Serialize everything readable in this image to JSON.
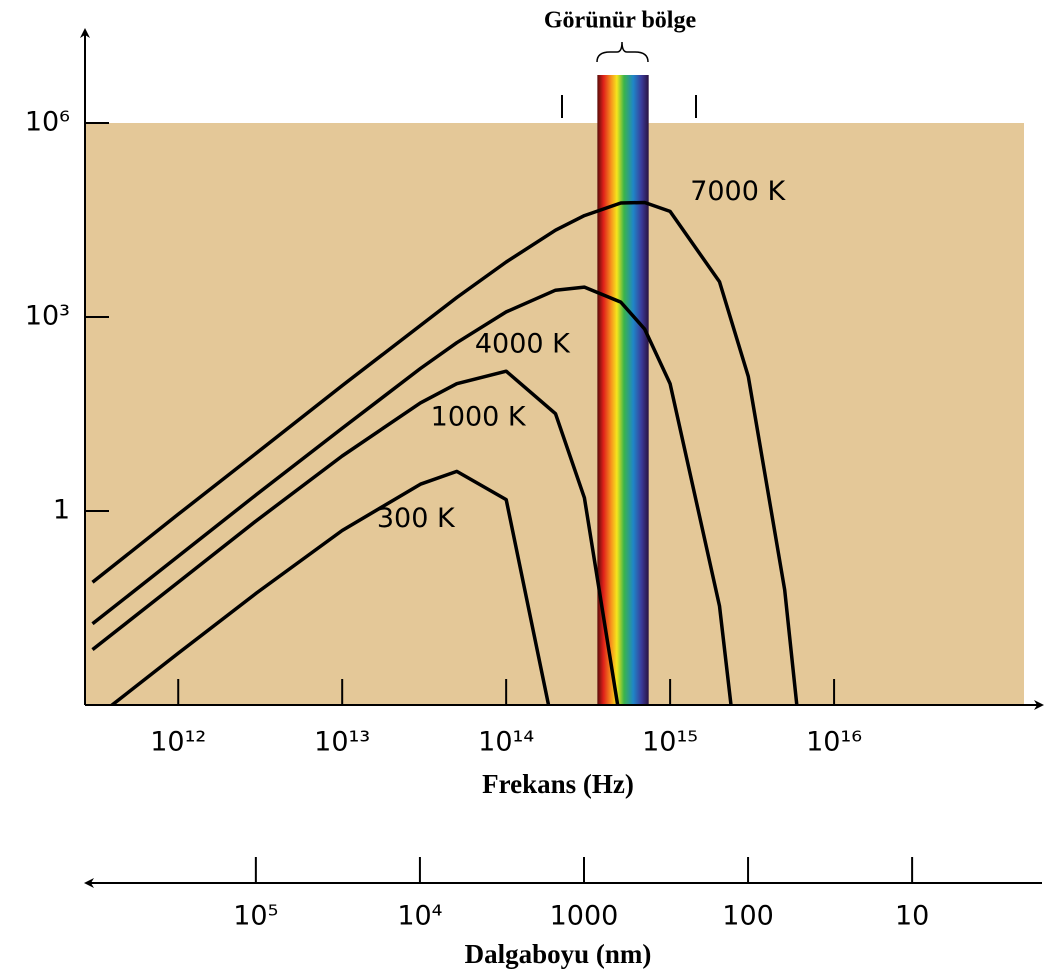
{
  "chart_data": {
    "type": "line",
    "x": [
      300000000000.0,
      1000000000000.0,
      3000000000000.0,
      10000000000000.0,
      30000000000000.0,
      50000000000000.0,
      100000000000000.0,
      200000000000000.0,
      300000000000000.0,
      500000000000000.0,
      700000000000000.0,
      1000000000000000.0,
      2000000000000000.0,
      3000000000000000.0,
      5000000000000000.0,
      7000000000000000.0,
      1e+16
    ],
    "series": [
      {
        "name": "300 K",
        "color": "#000000",
        "values": [
          0.00058,
          0.0063,
          0.054,
          0.5,
          2.6,
          4.1,
          1.5,
          0.0003,
          null,
          null,
          null,
          null,
          null,
          null,
          null,
          null,
          null
        ]
      },
      {
        "name": "1000 K",
        "color": "#000000",
        "values": [
          0.0072,
          0.079,
          0.71,
          7.1,
          47,
          93,
          145,
          32,
          1.6,
          0.0005,
          null,
          null,
          null,
          null,
          null,
          null,
          null
        ]
      },
      {
        "name": "4000 K",
        "color": "#000000",
        "values": [
          0.018,
          0.2,
          1.8,
          19,
          160,
          400,
          1200,
          2600,
          2900,
          1700,
          650,
          93,
          0.034,
          5e-06,
          null,
          null,
          null
        ]
      },
      {
        "name": "7000 K",
        "color": "#000000",
        "values": [
          0.079,
          0.89,
          7.9,
          87,
          740,
          2000,
          7100,
          22000,
          37000,
          58000,
          59000,
          43000,
          3500,
          120,
          0.06,
          1.8e-05,
          null
        ]
      }
    ],
    "xlog": true,
    "ylog": true,
    "xlim": [
      270000000000.0,
      1.44e+17
    ],
    "ylim": [
      0.001,
      1000000
    ],
    "xticks": [
      {
        "value": 1000000000000.0,
        "label": "10¹²"
      },
      {
        "value": 10000000000000.0,
        "label": "10¹³"
      },
      {
        "value": 100000000000000.0,
        "label": "10¹⁴"
      },
      {
        "value": 1000000000000000.0,
        "label": "10¹⁵"
      },
      {
        "value": 1e+16,
        "label": "10¹⁶"
      }
    ],
    "yticks": [
      1,
      {
        "value": 1000,
        "label": "10³"
      },
      {
        "value": 1000000,
        "label": "10⁶"
      }
    ],
    "xlabel": "Frekans (Hz)",
    "x2lim": [
      1100000,
      2.08
    ],
    "x2ticks": [
      {
        "value": 100000,
        "label": "10⁵"
      },
      {
        "value": 10000,
        "label": "10⁴"
      },
      1000,
      100,
      10
    ],
    "x2label": "Dalgaboyu (nm)",
    "annotation": "Görünür bölge",
    "visible_range": [
      360000000000000.0,
      740000000000000.0
    ],
    "background": "#e4c898",
    "grid": false
  }
}
